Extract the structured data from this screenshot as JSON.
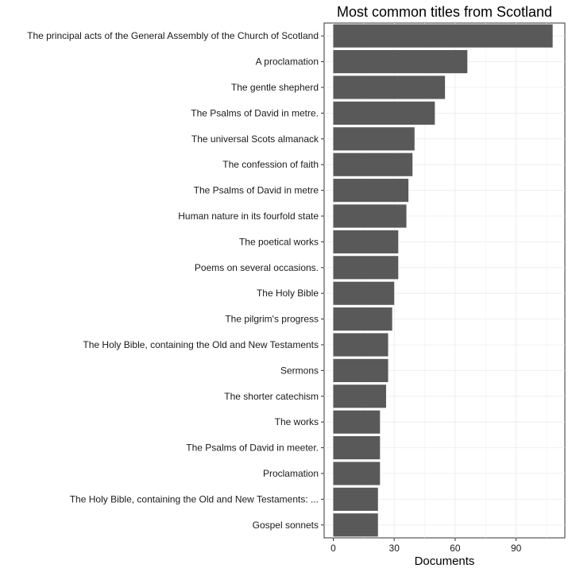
{
  "chart_data": {
    "type": "bar",
    "orientation": "horizontal",
    "title": "Most common titles from Scotland",
    "xlabel": "Documents",
    "ylabel": "",
    "xlim": [
      -4.5,
      114
    ],
    "xticks": [
      0,
      30,
      60,
      90
    ],
    "grid": true,
    "legend": "none",
    "bar_color": "#595959",
    "categories": [
      "The principal acts of the General Assembly of the Church of Scotland",
      "A proclamation",
      "The gentle shepherd",
      "The Psalms of David in metre.",
      "The universal Scots almanack",
      "The confession of faith",
      "The Psalms of David in metre",
      "Human nature in its fourfold state",
      "The poetical works",
      "Poems on several occasions.",
      "The Holy Bible",
      "The pilgrim's progress",
      "The Holy Bible, containing the Old and New Testaments",
      "Sermons",
      "The shorter catechism",
      "The works",
      "The Psalms of David in meeter.",
      "Proclamation",
      "The Holy Bible, containing the Old and New Testaments: ...",
      "Gospel sonnets"
    ],
    "values": [
      108,
      66,
      55,
      50,
      40,
      39,
      37,
      36,
      32,
      32,
      30,
      29,
      27,
      27,
      26,
      23,
      23,
      23,
      22,
      22
    ]
  }
}
